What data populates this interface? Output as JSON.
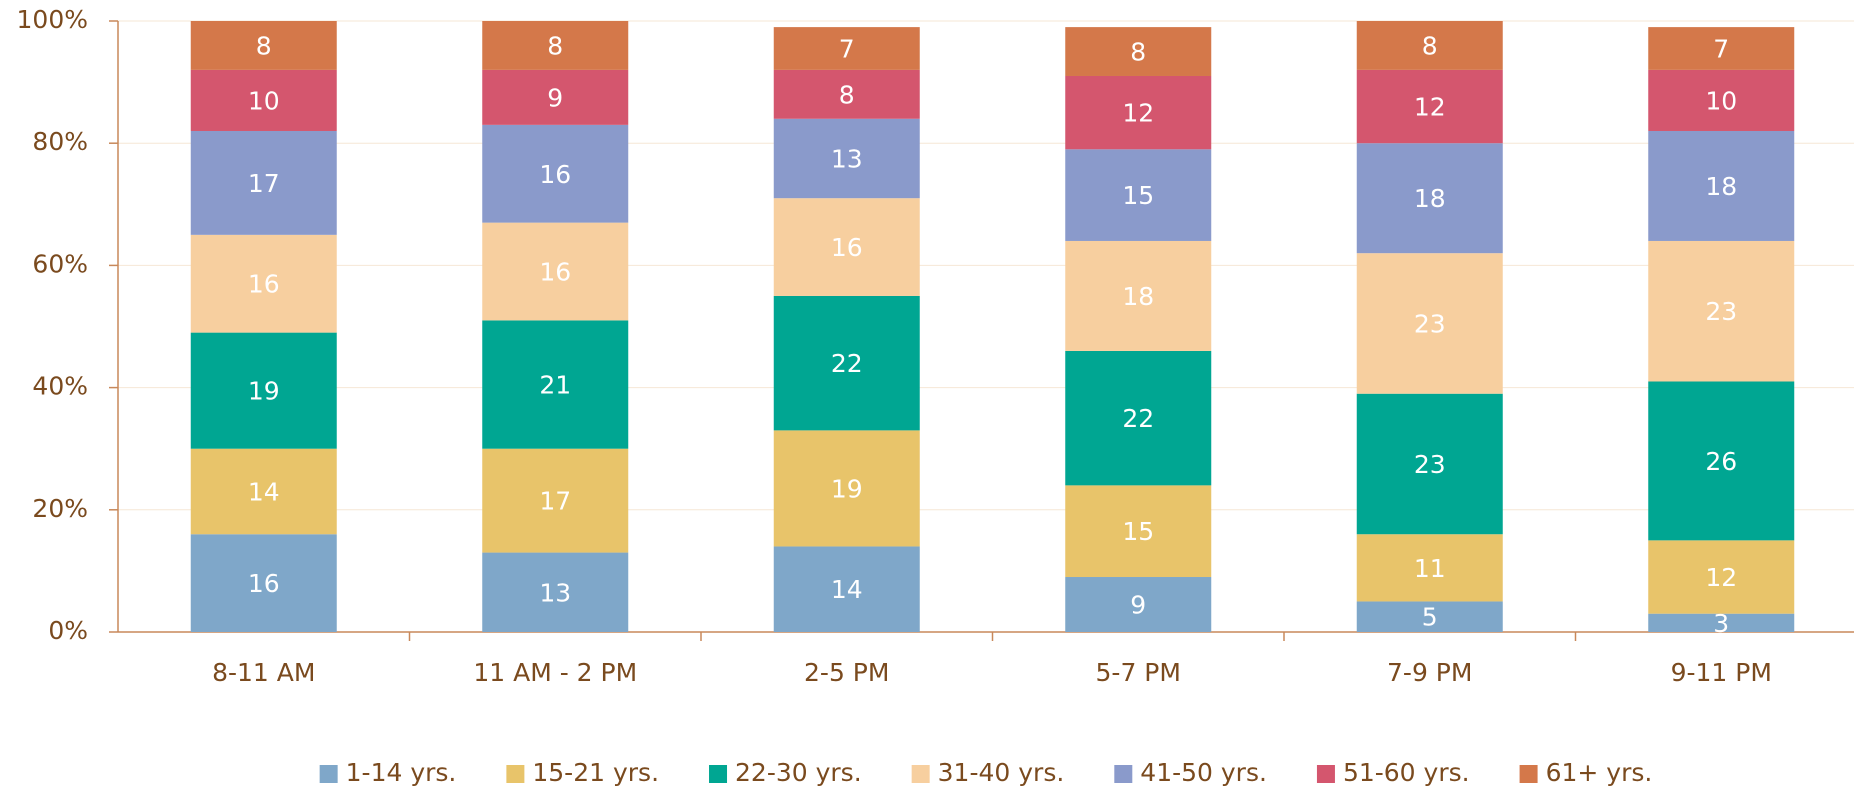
{
  "chart_data": {
    "type": "stacked_bar",
    "categories": [
      "8-11 AM",
      "11 AM - 2 PM",
      "2-5 PM",
      "5-7 PM",
      "7-9 PM",
      "9-11 PM"
    ],
    "series": [
      {
        "name": "1-14 yrs.",
        "color": "#7fa7c9",
        "values": [
          16,
          13,
          14,
          9,
          5,
          3
        ]
      },
      {
        "name": "15-21 yrs.",
        "color": "#e8c46a",
        "values": [
          14,
          17,
          19,
          15,
          11,
          12
        ]
      },
      {
        "name": "22-30 yrs.",
        "color": "#00a692",
        "values": [
          19,
          21,
          22,
          22,
          23,
          26
        ]
      },
      {
        "name": "31-40 yrs.",
        "color": "#f7cf9f",
        "values": [
          16,
          16,
          16,
          18,
          23,
          23
        ]
      },
      {
        "name": "41-50 yrs.",
        "color": "#8a9acb",
        "values": [
          17,
          16,
          13,
          15,
          18,
          18
        ]
      },
      {
        "name": "51-60 yrs.",
        "color": "#d4566e",
        "values": [
          10,
          9,
          8,
          12,
          12,
          10
        ]
      },
      {
        "name": "61+ yrs.",
        "color": "#d4784a",
        "values": [
          8,
          8,
          7,
          8,
          8,
          7
        ]
      }
    ],
    "ylim": [
      0,
      100
    ],
    "yticks": [
      {
        "value": 0,
        "label": "0%"
      },
      {
        "value": 20,
        "label": "20%"
      },
      {
        "value": 40,
        "label": "40%"
      },
      {
        "value": 60,
        "label": "60%"
      },
      {
        "value": 80,
        "label": "80%"
      },
      {
        "value": 100,
        "label": "100%"
      }
    ],
    "grid": true,
    "legend": "bottom"
  }
}
